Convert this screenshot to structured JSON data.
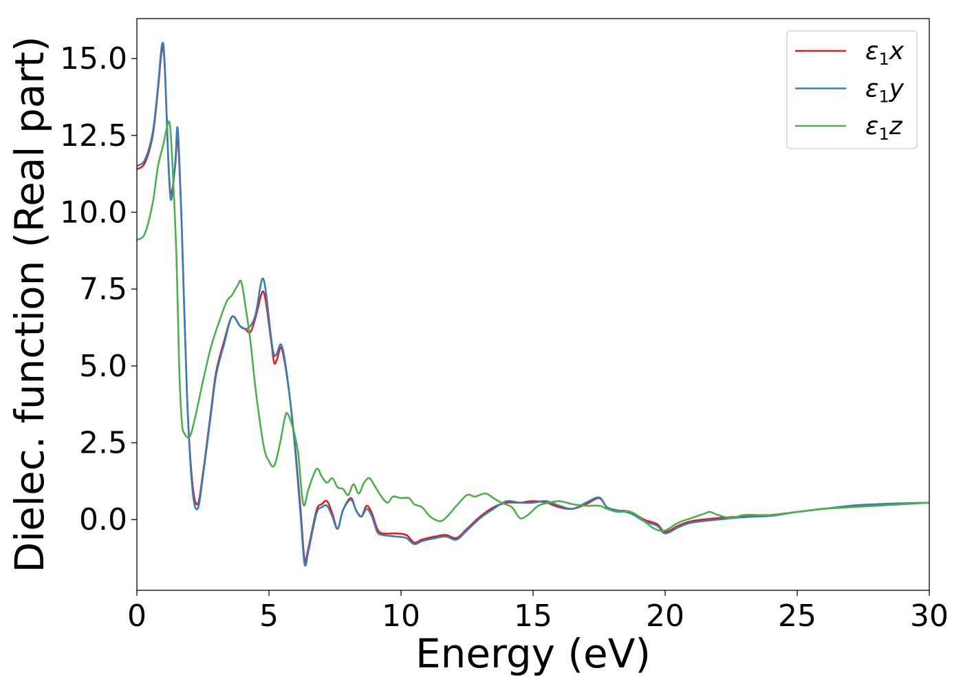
{
  "chart_data": {
    "type": "line",
    "xlabel": "Energy (eV)",
    "ylabel": "Dielec. function (Real part)",
    "xlim": [
      0,
      30
    ],
    "ylim": [
      -2.3,
      16.3
    ],
    "xticks": [
      0,
      5,
      10,
      15,
      20,
      25,
      30
    ],
    "xtick_labels": [
      "0",
      "5",
      "10",
      "15",
      "20",
      "25",
      "30"
    ],
    "yticks": [
      0.0,
      2.5,
      5.0,
      7.5,
      10.0,
      12.5,
      15.0
    ],
    "ytick_labels": [
      "0.0",
      "2.5",
      "5.0",
      "7.5",
      "10.0",
      "12.5",
      "15.0"
    ],
    "grid": false,
    "legend_position": "top-right",
    "series": [
      {
        "name": "ε1x",
        "legend": {
          "base": "ε",
          "sub": "1",
          "var": "x"
        },
        "color": "#e41a1c",
        "points": [
          [
            0,
            11.4
          ],
          [
            0.3,
            11.6
          ],
          [
            0.6,
            12.5
          ],
          [
            0.8,
            14.0
          ],
          [
            0.95,
            15.3
          ],
          [
            1.05,
            14.8
          ],
          [
            1.2,
            11.5
          ],
          [
            1.3,
            10.6
          ],
          [
            1.45,
            11.5
          ],
          [
            1.55,
            12.4
          ],
          [
            1.7,
            9.5
          ],
          [
            1.9,
            4.0
          ],
          [
            2.1,
            1.2
          ],
          [
            2.3,
            0.5
          ],
          [
            2.5,
            1.5
          ],
          [
            2.8,
            3.5
          ],
          [
            3.0,
            4.8
          ],
          [
            3.3,
            5.8
          ],
          [
            3.6,
            6.6
          ],
          [
            3.9,
            6.3
          ],
          [
            4.1,
            6.2
          ],
          [
            4.3,
            6.1
          ],
          [
            4.5,
            6.6
          ],
          [
            4.7,
            7.3
          ],
          [
            4.8,
            7.4
          ],
          [
            4.9,
            7.0
          ],
          [
            5.1,
            5.7
          ],
          [
            5.2,
            5.1
          ],
          [
            5.3,
            5.2
          ],
          [
            5.45,
            5.6
          ],
          [
            5.6,
            5.1
          ],
          [
            5.8,
            3.9
          ],
          [
            6.0,
            2.3
          ],
          [
            6.2,
            0.3
          ],
          [
            6.35,
            -1.3
          ],
          [
            6.5,
            -0.9
          ],
          [
            6.8,
            0.3
          ],
          [
            7.0,
            0.5
          ],
          [
            7.2,
            0.6
          ],
          [
            7.4,
            0.2
          ],
          [
            7.6,
            -0.3
          ],
          [
            7.8,
            0.3
          ],
          [
            8.1,
            0.7
          ],
          [
            8.3,
            0.3
          ],
          [
            8.5,
            0.1
          ],
          [
            8.7,
            0.45
          ],
          [
            8.9,
            0.2
          ],
          [
            9.1,
            -0.3
          ],
          [
            9.3,
            -0.45
          ],
          [
            9.8,
            -0.45
          ],
          [
            10.2,
            -0.5
          ],
          [
            10.5,
            -0.75
          ],
          [
            10.8,
            -0.65
          ],
          [
            11.3,
            -0.55
          ],
          [
            11.7,
            -0.5
          ],
          [
            12.1,
            -0.6
          ],
          [
            12.5,
            -0.3
          ],
          [
            13.0,
            0.1
          ],
          [
            13.5,
            0.4
          ],
          [
            14.0,
            0.55
          ],
          [
            14.5,
            0.55
          ],
          [
            15.0,
            0.6
          ],
          [
            15.5,
            0.55
          ],
          [
            16.0,
            0.4
          ],
          [
            16.5,
            0.35
          ],
          [
            17.0,
            0.5
          ],
          [
            17.5,
            0.7
          ],
          [
            17.8,
            0.4
          ],
          [
            18.2,
            0.3
          ],
          [
            18.7,
            0.25
          ],
          [
            19.2,
            0.0
          ],
          [
            19.7,
            -0.15
          ],
          [
            20.0,
            -0.4
          ],
          [
            20.5,
            -0.2
          ],
          [
            21.0,
            -0.05
          ],
          [
            22.0,
            0.05
          ],
          [
            23.0,
            0.1
          ],
          [
            24.0,
            0.15
          ],
          [
            25.0,
            0.25
          ],
          [
            26.0,
            0.35
          ],
          [
            27.0,
            0.42
          ],
          [
            28.0,
            0.48
          ],
          [
            29.0,
            0.52
          ],
          [
            30.0,
            0.55
          ]
        ]
      },
      {
        "name": "ε1y",
        "legend": {
          "base": "ε",
          "sub": "1",
          "var": "y"
        },
        "color": "#377eb8",
        "points": [
          [
            0,
            11.5
          ],
          [
            0.3,
            11.7
          ],
          [
            0.6,
            12.6
          ],
          [
            0.8,
            14.1
          ],
          [
            0.95,
            15.45
          ],
          [
            1.05,
            14.9
          ],
          [
            1.2,
            11.5
          ],
          [
            1.3,
            10.4
          ],
          [
            1.45,
            11.6
          ],
          [
            1.55,
            12.7
          ],
          [
            1.7,
            9.5
          ],
          [
            1.9,
            4.0
          ],
          [
            2.1,
            1.0
          ],
          [
            2.3,
            0.35
          ],
          [
            2.5,
            1.4
          ],
          [
            2.8,
            3.4
          ],
          [
            3.0,
            4.7
          ],
          [
            3.3,
            5.7
          ],
          [
            3.6,
            6.6
          ],
          [
            3.9,
            6.3
          ],
          [
            4.1,
            6.2
          ],
          [
            4.3,
            6.3
          ],
          [
            4.5,
            6.7
          ],
          [
            4.7,
            7.7
          ],
          [
            4.8,
            7.8
          ],
          [
            4.9,
            7.3
          ],
          [
            5.1,
            5.8
          ],
          [
            5.2,
            5.35
          ],
          [
            5.3,
            5.4
          ],
          [
            5.45,
            5.7
          ],
          [
            5.6,
            5.2
          ],
          [
            5.8,
            3.9
          ],
          [
            6.0,
            2.2
          ],
          [
            6.2,
            0.1
          ],
          [
            6.35,
            -1.45
          ],
          [
            6.5,
            -1.0
          ],
          [
            6.8,
            0.2
          ],
          [
            7.0,
            0.4
          ],
          [
            7.2,
            0.45
          ],
          [
            7.4,
            0.1
          ],
          [
            7.6,
            -0.3
          ],
          [
            7.8,
            0.3
          ],
          [
            8.1,
            0.65
          ],
          [
            8.3,
            0.3
          ],
          [
            8.5,
            0.1
          ],
          [
            8.7,
            0.35
          ],
          [
            8.9,
            0.1
          ],
          [
            9.1,
            -0.4
          ],
          [
            9.3,
            -0.5
          ],
          [
            9.8,
            -0.55
          ],
          [
            10.2,
            -0.6
          ],
          [
            10.5,
            -0.8
          ],
          [
            10.8,
            -0.7
          ],
          [
            11.3,
            -0.6
          ],
          [
            11.7,
            -0.55
          ],
          [
            12.1,
            -0.65
          ],
          [
            12.5,
            -0.35
          ],
          [
            13.0,
            0.05
          ],
          [
            13.5,
            0.35
          ],
          [
            14.0,
            0.6
          ],
          [
            14.5,
            0.55
          ],
          [
            15.0,
            0.55
          ],
          [
            15.5,
            0.6
          ],
          [
            16.0,
            0.45
          ],
          [
            16.5,
            0.35
          ],
          [
            17.0,
            0.55
          ],
          [
            17.5,
            0.72
          ],
          [
            17.8,
            0.4
          ],
          [
            18.2,
            0.3
          ],
          [
            18.7,
            0.2
          ],
          [
            19.2,
            -0.05
          ],
          [
            19.7,
            -0.2
          ],
          [
            20.0,
            -0.45
          ],
          [
            20.5,
            -0.25
          ],
          [
            21.0,
            -0.1
          ],
          [
            22.0,
            0.0
          ],
          [
            23.0,
            0.08
          ],
          [
            24.0,
            0.12
          ],
          [
            25.0,
            0.25
          ],
          [
            26.0,
            0.35
          ],
          [
            27.0,
            0.45
          ],
          [
            28.0,
            0.5
          ],
          [
            29.0,
            0.53
          ],
          [
            30.0,
            0.55
          ]
        ]
      },
      {
        "name": "ε1z",
        "legend": {
          "base": "ε",
          "sub": "1",
          "var": "z"
        },
        "color": "#4daf4a",
        "points": [
          [
            0,
            9.1
          ],
          [
            0.3,
            9.3
          ],
          [
            0.6,
            10.3
          ],
          [
            0.8,
            11.5
          ],
          [
            1.0,
            12.2
          ],
          [
            1.15,
            12.8
          ],
          [
            1.25,
            12.85
          ],
          [
            1.35,
            11.5
          ],
          [
            1.5,
            8.5
          ],
          [
            1.6,
            5.0
          ],
          [
            1.7,
            3.2
          ],
          [
            1.8,
            2.8
          ],
          [
            2.0,
            2.7
          ],
          [
            2.2,
            3.3
          ],
          [
            2.5,
            4.5
          ],
          [
            2.8,
            5.6
          ],
          [
            3.1,
            6.4
          ],
          [
            3.4,
            7.1
          ],
          [
            3.6,
            7.3
          ],
          [
            3.8,
            7.6
          ],
          [
            3.95,
            7.75
          ],
          [
            4.1,
            7.0
          ],
          [
            4.3,
            5.8
          ],
          [
            4.5,
            4.2
          ],
          [
            4.8,
            2.4
          ],
          [
            5.0,
            1.9
          ],
          [
            5.2,
            1.75
          ],
          [
            5.4,
            2.4
          ],
          [
            5.6,
            3.3
          ],
          [
            5.7,
            3.45
          ],
          [
            5.9,
            3.0
          ],
          [
            6.1,
            2.2
          ],
          [
            6.3,
            0.5
          ],
          [
            6.5,
            1.0
          ],
          [
            6.8,
            1.65
          ],
          [
            7.0,
            1.4
          ],
          [
            7.2,
            1.2
          ],
          [
            7.4,
            1.35
          ],
          [
            7.6,
            1.05
          ],
          [
            7.8,
            1.0
          ],
          [
            8.0,
            0.8
          ],
          [
            8.2,
            1.15
          ],
          [
            8.4,
            0.85
          ],
          [
            8.6,
            1.2
          ],
          [
            8.8,
            1.35
          ],
          [
            9.0,
            1.1
          ],
          [
            9.3,
            0.7
          ],
          [
            9.5,
            0.55
          ],
          [
            9.7,
            0.75
          ],
          [
            10.0,
            0.7
          ],
          [
            10.3,
            0.7
          ],
          [
            10.5,
            0.5
          ],
          [
            10.8,
            0.4
          ],
          [
            11.1,
            0.1
          ],
          [
            11.5,
            -0.05
          ],
          [
            11.8,
            0.15
          ],
          [
            12.1,
            0.45
          ],
          [
            12.5,
            0.8
          ],
          [
            12.8,
            0.75
          ],
          [
            13.2,
            0.85
          ],
          [
            13.5,
            0.7
          ],
          [
            13.8,
            0.55
          ],
          [
            14.2,
            0.4
          ],
          [
            14.5,
            0.05
          ],
          [
            14.8,
            0.15
          ],
          [
            15.2,
            0.45
          ],
          [
            15.6,
            0.55
          ],
          [
            16.0,
            0.6
          ],
          [
            16.5,
            0.5
          ],
          [
            17.0,
            0.45
          ],
          [
            17.5,
            0.45
          ],
          [
            17.8,
            0.35
          ],
          [
            18.2,
            0.25
          ],
          [
            18.7,
            0.25
          ],
          [
            19.2,
            -0.05
          ],
          [
            19.6,
            -0.3
          ],
          [
            20.0,
            -0.35
          ],
          [
            20.5,
            -0.1
          ],
          [
            21.0,
            0.05
          ],
          [
            21.5,
            0.2
          ],
          [
            21.7,
            0.25
          ],
          [
            22.0,
            0.15
          ],
          [
            22.5,
            0.05
          ],
          [
            23.0,
            0.15
          ],
          [
            24.0,
            0.15
          ],
          [
            25.0,
            0.25
          ],
          [
            26.0,
            0.35
          ],
          [
            27.0,
            0.4
          ],
          [
            28.0,
            0.45
          ],
          [
            29.0,
            0.5
          ],
          [
            30.0,
            0.55
          ]
        ]
      }
    ]
  }
}
